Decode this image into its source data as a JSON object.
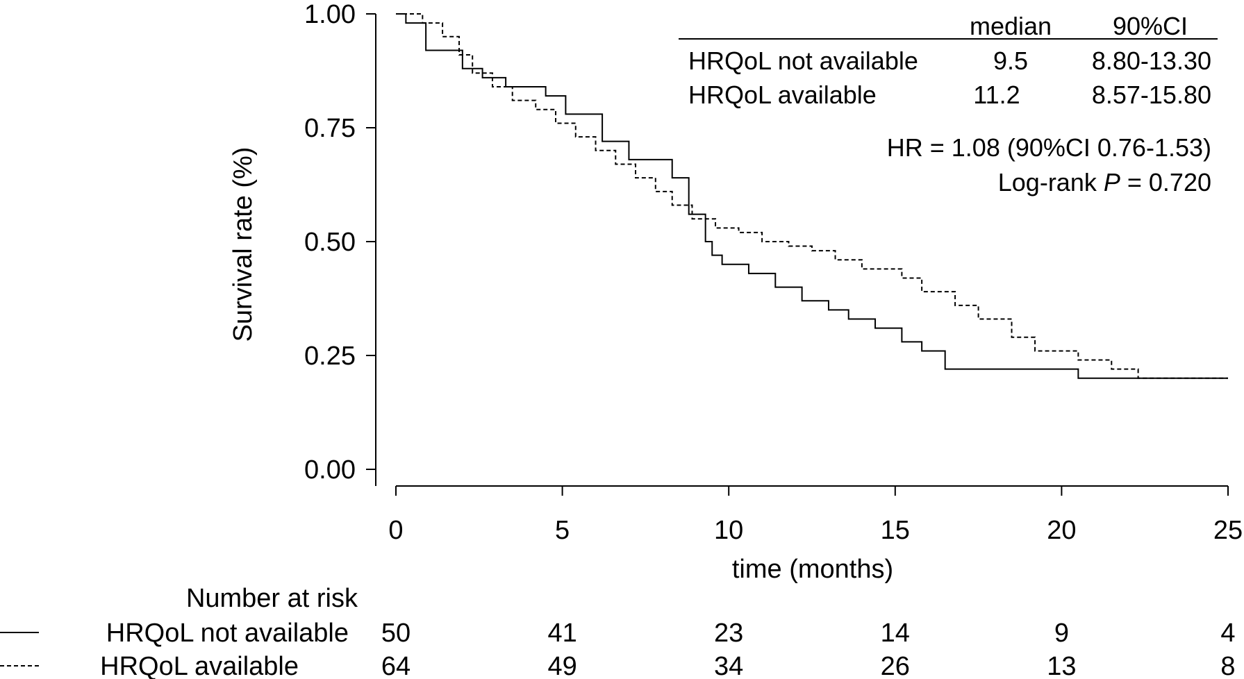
{
  "chart_data": {
    "type": "line",
    "title": "",
    "xlabel": "time (months)",
    "ylabel": "Survival rate (%)",
    "xlim": [
      0,
      25
    ],
    "ylim": [
      0,
      1
    ],
    "xticks": [
      0,
      5,
      10,
      15,
      20,
      25
    ],
    "yticks": [
      0,
      0.25,
      0.5,
      0.75,
      1.0
    ],
    "x_tick_labels": [
      "0",
      "5",
      "10",
      "15",
      "20",
      "25"
    ],
    "y_tick_labels": [
      "0.00",
      "0.25",
      "0.50",
      "0.75",
      "1.00"
    ],
    "grid": false,
    "series": [
      {
        "name": "HRQoL not available",
        "line_style": "solid",
        "x": [
          0,
          0.3,
          0.9,
          2.0,
          2.6,
          3.3,
          4.5,
          5.1,
          6.2,
          7.0,
          8.3,
          8.8,
          9.3,
          9.5,
          9.8,
          10.6,
          11.4,
          12.2,
          13.0,
          13.6,
          14.4,
          15.2,
          15.8,
          16.5,
          18.5,
          20.5,
          25
        ],
        "y": [
          1.0,
          0.98,
          0.92,
          0.88,
          0.86,
          0.84,
          0.82,
          0.78,
          0.72,
          0.68,
          0.64,
          0.56,
          0.5,
          0.47,
          0.45,
          0.43,
          0.4,
          0.37,
          0.35,
          0.33,
          0.31,
          0.28,
          0.26,
          0.22,
          0.22,
          0.2,
          0.2
        ]
      },
      {
        "name": "HRQoL available",
        "line_style": "dashed",
        "x": [
          0,
          0.8,
          1.4,
          1.9,
          2.3,
          2.9,
          3.5,
          4.2,
          4.8,
          5.4,
          6.0,
          6.6,
          7.2,
          7.8,
          8.3,
          8.9,
          9.6,
          10.3,
          11.0,
          11.8,
          12.5,
          13.2,
          14.0,
          15.2,
          15.8,
          16.8,
          17.5,
          18.5,
          19.2,
          20.5,
          21.5,
          22.3,
          25
        ],
        "y": [
          1.0,
          0.98,
          0.95,
          0.91,
          0.87,
          0.84,
          0.81,
          0.79,
          0.76,
          0.73,
          0.7,
          0.67,
          0.64,
          0.61,
          0.58,
          0.55,
          0.53,
          0.52,
          0.5,
          0.49,
          0.48,
          0.46,
          0.44,
          0.42,
          0.39,
          0.36,
          0.33,
          0.29,
          0.26,
          0.24,
          0.22,
          0.2,
          0.2
        ]
      }
    ]
  },
  "summary_table": {
    "headers": [
      "median",
      "90%CI"
    ],
    "rows": [
      {
        "label": "HRQoL not available",
        "median": "9.5",
        "ci": "8.80-13.30"
      },
      {
        "label": "HRQoL available",
        "median": "11.2",
        "ci": "8.57-15.80"
      }
    ],
    "hr_text": "HR = 1.08 (90%CI 0.76-1.53)",
    "logrank_prefix": "Log-rank ",
    "logrank_p": "P",
    "logrank_suffix": " = 0.720"
  },
  "risk_table": {
    "title": "Number at risk",
    "rows": [
      {
        "label": "HRQoL not available",
        "line_style": "solid",
        "values": [
          "50",
          "41",
          "23",
          "14",
          "9",
          "4"
        ]
      },
      {
        "label": "HRQoL available",
        "line_style": "dashed",
        "values": [
          "64",
          "49",
          "34",
          "26",
          "13",
          "8"
        ]
      }
    ]
  }
}
